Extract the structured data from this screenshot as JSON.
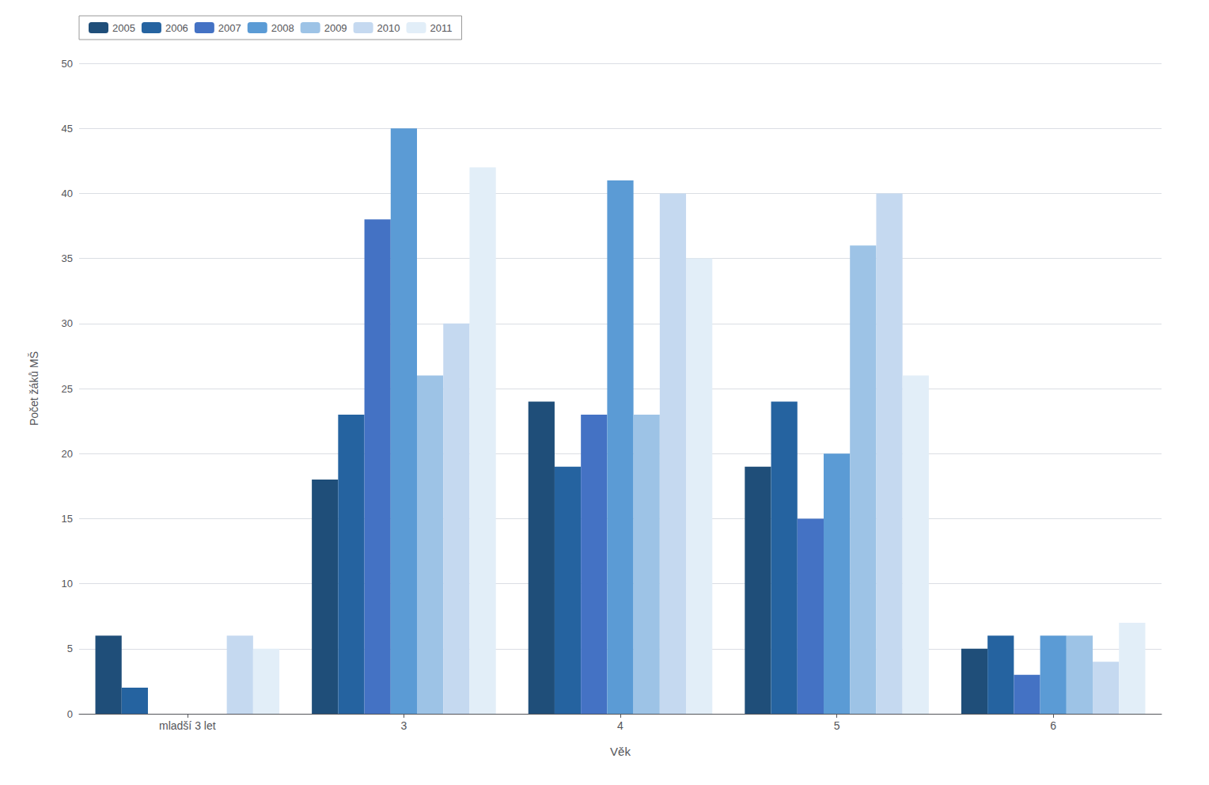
{
  "chart_data": {
    "type": "bar",
    "categories": [
      "mladší 3 let",
      "3",
      "4",
      "5",
      "6"
    ],
    "series": [
      {
        "name": "2005",
        "color": "#1F4E79",
        "values": [
          6,
          18,
          24,
          19,
          5
        ]
      },
      {
        "name": "2006",
        "color": "#2563A0",
        "values": [
          2,
          23,
          19,
          24,
          6
        ]
      },
      {
        "name": "2007",
        "color": "#4472C4",
        "values": [
          0,
          38,
          23,
          15,
          3
        ]
      },
      {
        "name": "2008",
        "color": "#5B9BD5",
        "values": [
          0,
          45,
          41,
          20,
          6
        ]
      },
      {
        "name": "2009",
        "color": "#9DC3E6",
        "values": [
          0,
          26,
          23,
          36,
          6
        ]
      },
      {
        "name": "2010",
        "color": "#C5D9F0",
        "values": [
          6,
          30,
          40,
          40,
          4
        ]
      },
      {
        "name": "2011",
        "color": "#E2EEF8",
        "values": [
          5,
          42,
          35,
          26,
          7
        ]
      }
    ],
    "xlabel": "Věk",
    "ylabel": "Počet žáků MŠ",
    "ylim": [
      0,
      50
    ],
    "yticks": [
      0,
      5,
      10,
      15,
      20,
      25,
      30,
      35,
      40,
      45,
      50
    ],
    "grid": true,
    "legend": "upper left"
  }
}
